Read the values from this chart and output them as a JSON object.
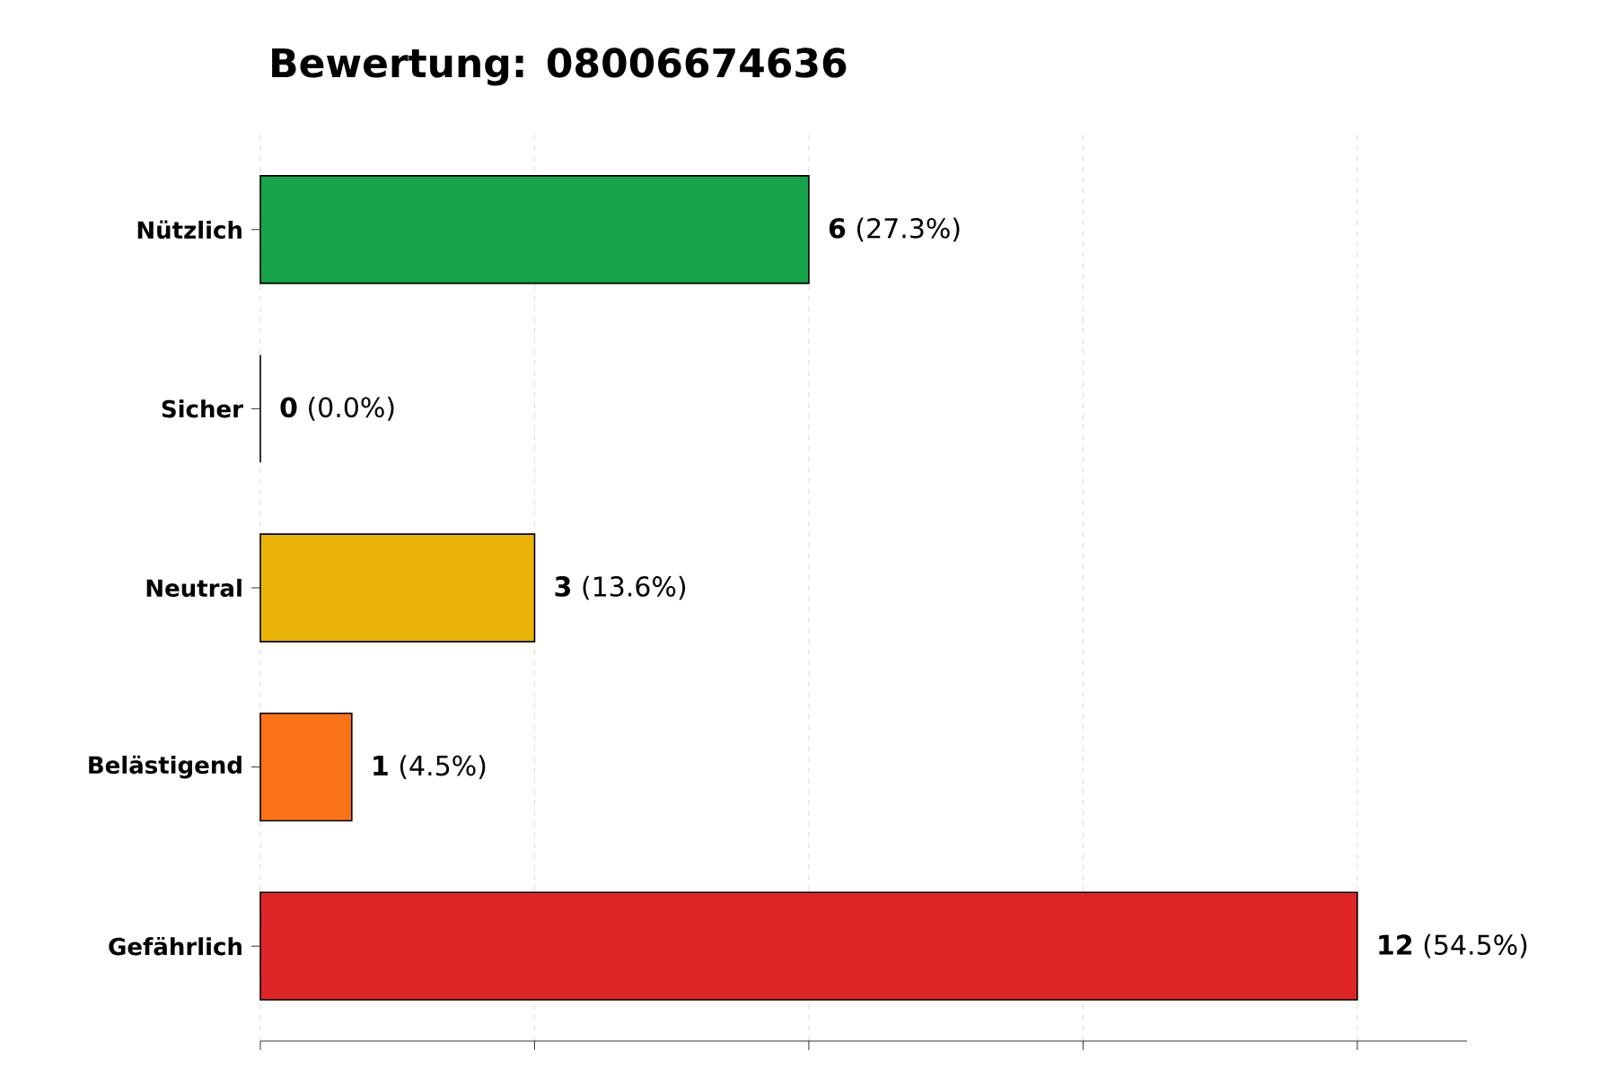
{
  "chart_data": {
    "type": "bar",
    "orientation": "horizontal",
    "title": "Bewertung: 08006674636",
    "categories": [
      "Nützlich",
      "Sicher",
      "Neutral",
      "Belästigend",
      "Gefährlich"
    ],
    "values": [
      6,
      0,
      3,
      1,
      12
    ],
    "colors": [
      "#16a34a",
      "#15803d",
      "#eab308",
      "#f97316",
      "#dc2626"
    ],
    "value_labels": [
      "**6** (27.3%)",
      "**0** (0.0%)",
      "**3** (13.6%)",
      "**1** (4.5%)",
      "**12** (54.5%)"
    ],
    "xlim": [
      0,
      13.2
    ],
    "xticks": [
      {
        "value": 0,
        "label": null
      },
      {
        "value": 3,
        "label": null
      },
      {
        "value": 6,
        "label": null
      },
      {
        "value": 9,
        "label": null
      },
      {
        "value": 12,
        "label": null
      }
    ],
    "tick_labels": "y",
    "grid": "x"
  }
}
